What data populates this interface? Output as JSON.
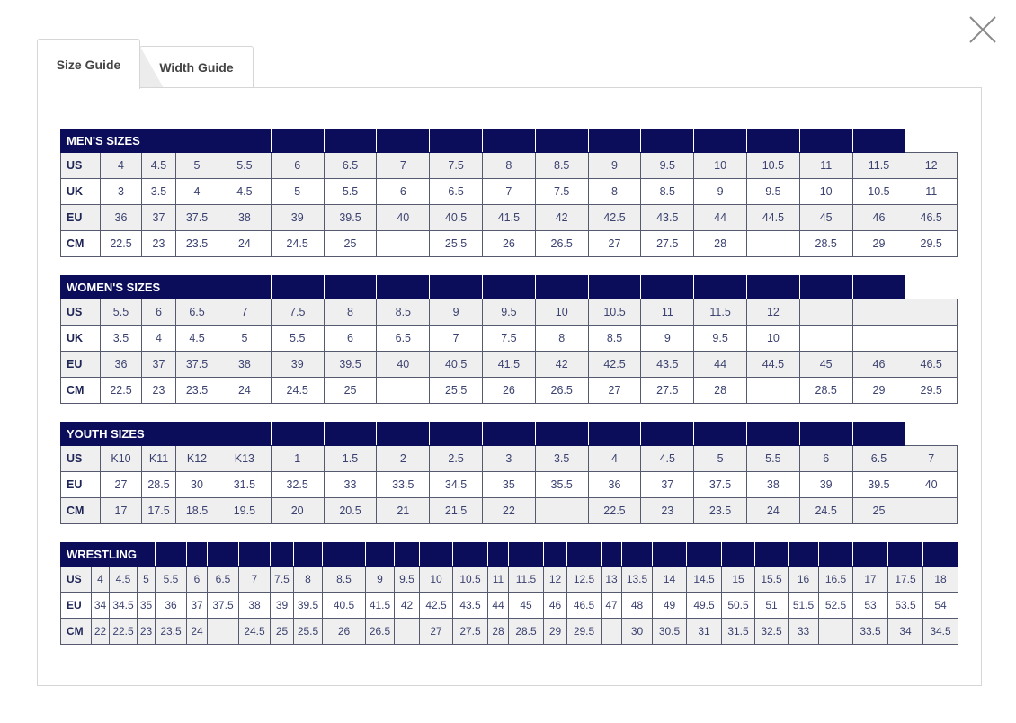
{
  "tabs": [
    {
      "label": "Size Guide",
      "active": true
    },
    {
      "label": "Width Guide",
      "active": false
    }
  ],
  "close_icon": "close-x-icon",
  "colors": {
    "header_bg": "#0b0d5a",
    "row_alt": "#efefef",
    "text": "#3c4270"
  },
  "tables": [
    {
      "title": "MEN'S SIZES",
      "rows": [
        {
          "label": "US",
          "values": [
            "4",
            "4.5",
            "5",
            "5.5",
            "6",
            "6.5",
            "7",
            "7.5",
            "8",
            "8.5",
            "9",
            "9.5",
            "10",
            "10.5",
            "11",
            "11.5",
            "12"
          ]
        },
        {
          "label": "UK",
          "values": [
            "3",
            "3.5",
            "4",
            "4.5",
            "5",
            "5.5",
            "6",
            "6.5",
            "7",
            "7.5",
            "8",
            "8.5",
            "9",
            "9.5",
            "10",
            "10.5",
            "11"
          ]
        },
        {
          "label": "EU",
          "values": [
            "36",
            "37",
            "37.5",
            "38",
            "39",
            "39.5",
            "40",
            "40.5",
            "41.5",
            "42",
            "42.5",
            "43.5",
            "44",
            "44.5",
            "45",
            "46",
            "46.5"
          ]
        },
        {
          "label": "CM",
          "values": [
            "22.5",
            "23",
            "23.5",
            "24",
            "24.5",
            "25",
            "",
            "25.5",
            "26",
            "26.5",
            "27",
            "27.5",
            "28",
            "",
            "28.5",
            "29",
            "29.5"
          ]
        }
      ]
    },
    {
      "title": "WOMEN'S SIZES",
      "rows": [
        {
          "label": "US",
          "values": [
            "5.5",
            "6",
            "6.5",
            "7",
            "7.5",
            "8",
            "8.5",
            "9",
            "9.5",
            "10",
            "10.5",
            "11",
            "11.5",
            "12",
            "",
            "",
            ""
          ]
        },
        {
          "label": "UK",
          "values": [
            "3.5",
            "4",
            "4.5",
            "5",
            "5.5",
            "6",
            "6.5",
            "7",
            "7.5",
            "8",
            "8.5",
            "9",
            "9.5",
            "10",
            "",
            "",
            ""
          ]
        },
        {
          "label": "EU",
          "values": [
            "36",
            "37",
            "37.5",
            "38",
            "39",
            "39.5",
            "40",
            "40.5",
            "41.5",
            "42",
            "42.5",
            "43.5",
            "44",
            "44.5",
            "45",
            "46",
            "46.5"
          ]
        },
        {
          "label": "CM",
          "values": [
            "22.5",
            "23",
            "23.5",
            "24",
            "24.5",
            "25",
            "",
            "25.5",
            "26",
            "26.5",
            "27",
            "27.5",
            "28",
            "",
            "28.5",
            "29",
            "29.5"
          ]
        }
      ]
    },
    {
      "title": "YOUTH SIZES",
      "rows": [
        {
          "label": "US",
          "values": [
            "K10",
            "K11",
            "K12",
            "K13",
            "1",
            "1.5",
            "2",
            "2.5",
            "3",
            "3.5",
            "4",
            "4.5",
            "5",
            "5.5",
            "6",
            "6.5",
            "7"
          ]
        },
        {
          "label": "EU",
          "values": [
            "27",
            "28.5",
            "30",
            "31.5",
            "32.5",
            "33",
            "33.5",
            "34.5",
            "35",
            "35.5",
            "36",
            "37",
            "37.5",
            "38",
            "39",
            "39.5",
            "40"
          ]
        },
        {
          "label": "CM",
          "values": [
            "17",
            "17.5",
            "18.5",
            "19.5",
            "20",
            "20.5",
            "21",
            "21.5",
            "22",
            "",
            "22.5",
            "23",
            "23.5",
            "24",
            "24.5",
            "25",
            ""
          ]
        }
      ]
    },
    {
      "title": "WRESTLING",
      "rows": [
        {
          "label": "US",
          "values": [
            "4",
            "4.5",
            "5",
            "5.5",
            "6",
            "6.5",
            "7",
            "7.5",
            "8",
            "8.5",
            "9",
            "9.5",
            "10",
            "10.5",
            "11",
            "11.5",
            "12",
            "12.5",
            "13",
            "13.5",
            "14",
            "14.5",
            "15",
            "15.5",
            "16",
            "16.5",
            "17",
            "17.5",
            "18"
          ]
        },
        {
          "label": "EU",
          "values": [
            "34",
            "34.5",
            "35",
            "36",
            "37",
            "37.5",
            "38",
            "39",
            "39.5",
            "40.5",
            "41.5",
            "42",
            "42.5",
            "43.5",
            "44",
            "45",
            "46",
            "46.5",
            "47",
            "48",
            "49",
            "49.5",
            "50.5",
            "51",
            "51.5",
            "52.5",
            "53",
            "53.5",
            "54"
          ]
        },
        {
          "label": "CM",
          "values": [
            "22",
            "22.5",
            "23",
            "23.5",
            "24",
            "",
            "24.5",
            "25",
            "25.5",
            "26",
            "26.5",
            "",
            "27",
            "27.5",
            "28",
            "28.5",
            "29",
            "29.5",
            "",
            "30",
            "30.5",
            "31",
            "31.5",
            "32.5",
            "33",
            "",
            "33.5",
            "34",
            "34.5"
          ]
        }
      ]
    }
  ]
}
